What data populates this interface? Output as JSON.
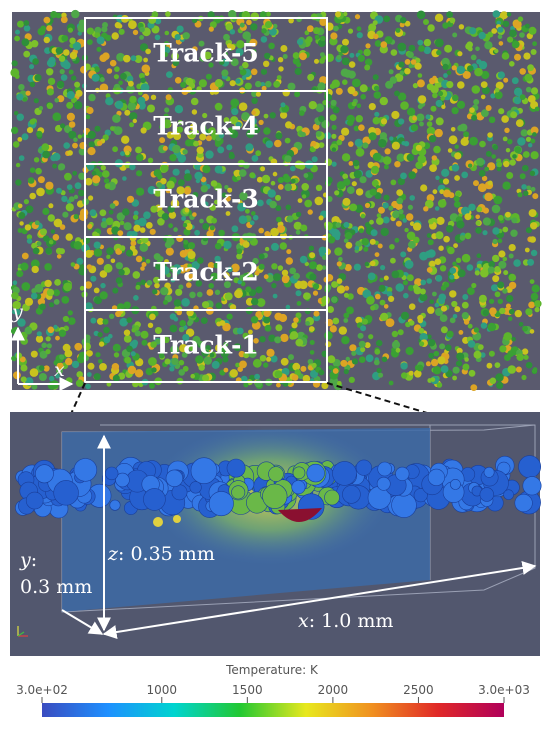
{
  "top_panel": {
    "tracks": [
      "Track-5",
      "Track-4",
      "Track-3",
      "Track-2",
      "Track-1"
    ],
    "axis_y": "y",
    "axis_x": "x"
  },
  "bottom_panel": {
    "z_label": "z",
    "z_value": ": 0.35 mm",
    "y_label": "y",
    "y_colon": ":",
    "y_value": "0.3 mm",
    "x_label": "x",
    "x_value": ": 1.0 mm"
  },
  "colorbar": {
    "title": "Temperature: K",
    "lim": [
      300,
      3000
    ],
    "ticks": [
      {
        "value": 300,
        "label": "3.0e+02"
      },
      1000,
      1500,
      2000,
      2500,
      {
        "value": 3000,
        "label": "3.0e+03"
      }
    ],
    "colors": [
      "#3a4cc0",
      "#1e90ff",
      "#00d4d0",
      "#22c832",
      "#e8e81e",
      "#f09020",
      "#e02828",
      "#b0005a"
    ]
  }
}
